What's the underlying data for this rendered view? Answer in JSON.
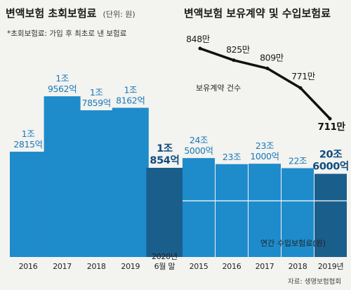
{
  "colors": {
    "background": "#f3f3f0",
    "bar": "#1e8bcb",
    "bar_highlight": "#1a5e8c",
    "label": "#1a78b8",
    "label_highlight": "#0f4c80",
    "line": "#111111",
    "separator": "#ffffff"
  },
  "left": {
    "title": "변액보험 초회보험료",
    "unit": "(단위: 원)",
    "note": "*초회보험료: 가입 후 최초로 낸 보험료"
  },
  "right": {
    "title": "변액보험 보유계약 및 수입보험료",
    "line_legend": "보유계약 건수",
    "bar_legend": "연간 수입보험료(원)",
    "source": "자료: 생명보험협회"
  },
  "chart_data": [
    {
      "type": "bar",
      "title": "변액보험 초회보험료",
      "unit": "(단위: 원)",
      "categories": [
        "2016",
        "2017",
        "2018",
        "2019",
        "2020년 6월 말"
      ],
      "category_lines": [
        [
          "2016"
        ],
        [
          "2017"
        ],
        [
          "2018"
        ],
        [
          "2019"
        ],
        [
          "2020년",
          "6월 말"
        ]
      ],
      "values": [
        12815,
        19562,
        17859,
        18162,
        10854
      ],
      "value_unit": "억원",
      "data_labels": [
        [
          "1조",
          "2815억"
        ],
        [
          "1조",
          "9562억"
        ],
        [
          "1조",
          "7859억"
        ],
        [
          "1조",
          "8162억"
        ],
        [
          "1조",
          "854억"
        ]
      ],
      "highlight_index": 4
    },
    {
      "type": "bar+line",
      "title": "변액보험 보유계약 및 수입보험료",
      "categories": [
        "2015",
        "2016",
        "2017",
        "2018",
        "2019년"
      ],
      "series": [
        {
          "name": "연간 수입보험료(원)",
          "type": "bar",
          "values": [
            245000,
            230000,
            231000,
            220000,
            206000
          ],
          "value_unit": "억원",
          "data_labels": [
            [
              "24조",
              "5000억"
            ],
            [
              "23조"
            ],
            [
              "23조",
              "1000억"
            ],
            [
              "22조"
            ],
            [
              "20조",
              "6000억"
            ]
          ],
          "highlight_index": 4
        },
        {
          "name": "보유계약 건수",
          "type": "line",
          "values": [
            848,
            825,
            809,
            771,
            711
          ],
          "value_unit": "만",
          "data_labels": [
            "848만",
            "825만",
            "809만",
            "771만",
            "711만"
          ]
        }
      ],
      "source": "자료: 생명보험협회"
    }
  ]
}
